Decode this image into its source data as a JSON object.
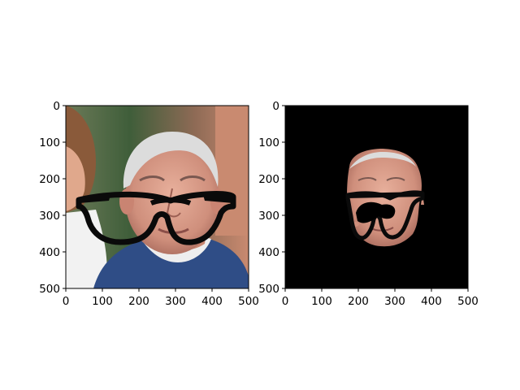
{
  "chart_data": [
    {
      "type": "image",
      "content": "photo of man with overlaid black eyeglasses",
      "xlim": [
        0,
        500
      ],
      "ylim": [
        500,
        0
      ],
      "xticks": [
        0,
        100,
        200,
        300,
        400,
        500
      ],
      "yticks": [
        0,
        100,
        200,
        300,
        400,
        500
      ],
      "xtick_labels": [
        "0",
        "100",
        "200",
        "300",
        "400",
        "500"
      ],
      "ytick_labels": [
        "0",
        "100",
        "200",
        "300",
        "400",
        "500"
      ],
      "title": "",
      "xlabel": "",
      "ylabel": "",
      "grid": false
    },
    {
      "type": "image",
      "content": "segmented face on black background with eyeglasses",
      "xlim": [
        0,
        500
      ],
      "ylim": [
        500,
        0
      ],
      "xticks": [
        0,
        100,
        200,
        300,
        400,
        500
      ],
      "yticks": [
        0,
        100,
        200,
        300,
        400,
        500
      ],
      "xtick_labels": [
        "0",
        "100",
        "200",
        "300",
        "400",
        "500"
      ],
      "ytick_labels": [
        "0",
        "100",
        "200",
        "300",
        "400",
        "500"
      ],
      "title": "",
      "xlabel": "",
      "ylabel": "",
      "grid": false,
      "background_color": "#000000"
    }
  ],
  "colors": {
    "glasses": "#0a0a0a",
    "skin": "#d89a86",
    "hair": "#d8d8d8",
    "vest": "#2f4d86",
    "shirt": "#eeeeee",
    "wall": "#c98a70",
    "foliage": "#3f5e3a",
    "axis": "#000000"
  }
}
